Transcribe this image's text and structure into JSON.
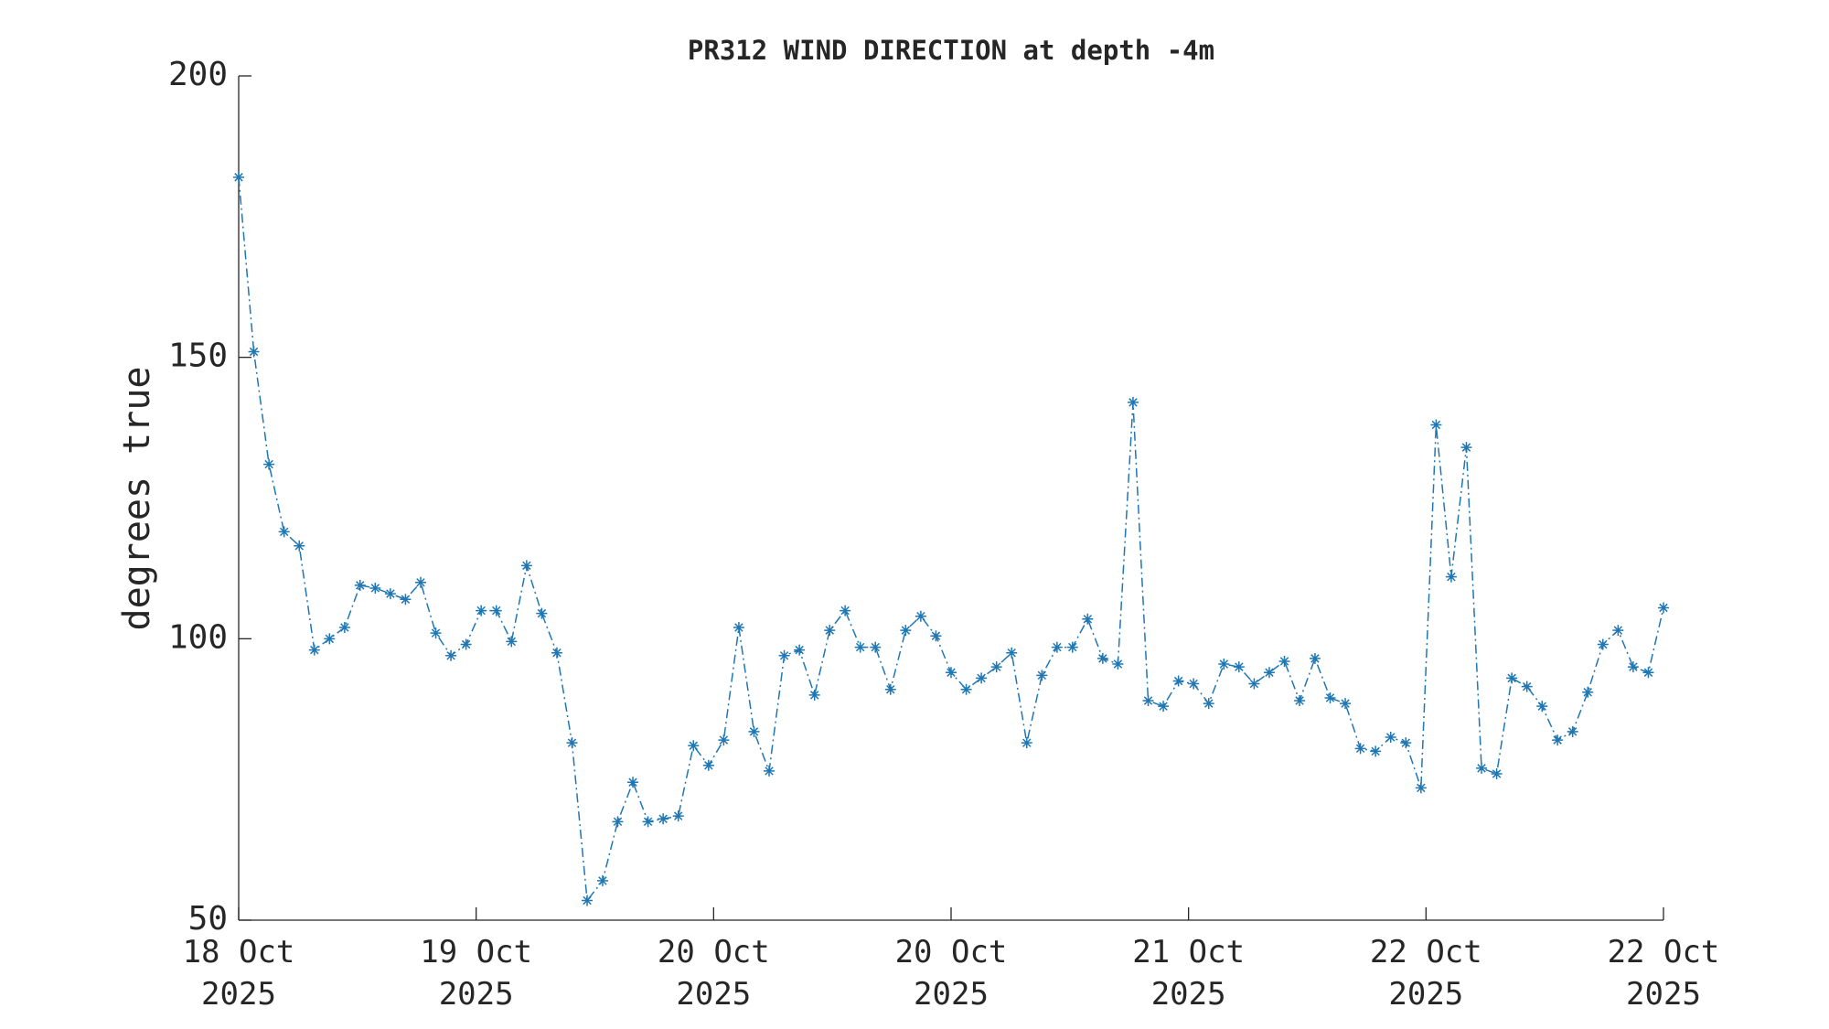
{
  "chart_data": {
    "type": "line",
    "title": "PR312 WIND DIRECTION at depth -4m",
    "y_label": "degrees true",
    "x": [
      0,
      0.051,
      0.102,
      0.153,
      0.204,
      0.255,
      0.306,
      0.357,
      0.409,
      0.46,
      0.511,
      0.562,
      0.613,
      0.664,
      0.715,
      0.766,
      0.817,
      0.868,
      0.919,
      0.97,
      1.021,
      1.072,
      1.123,
      1.174,
      1.226,
      1.277,
      1.328,
      1.379,
      1.43,
      1.481,
      1.532,
      1.583,
      1.634,
      1.685,
      1.736,
      1.787,
      1.838,
      1.889,
      1.94,
      1.991,
      2.043,
      2.094,
      2.145,
      2.196,
      2.247,
      2.298,
      2.349,
      2.4,
      2.451,
      2.502,
      2.553,
      2.604,
      2.655,
      2.706,
      2.757,
      2.809,
      2.86,
      2.911,
      2.962,
      3.013,
      3.064,
      3.115,
      3.166,
      3.217,
      3.268,
      3.319,
      3.37,
      3.421,
      3.472,
      3.523,
      3.574,
      3.626,
      3.677,
      3.728,
      3.779,
      3.83,
      3.881,
      3.932,
      3.983,
      4.034,
      4.085,
      4.136,
      4.187,
      4.238,
      4.289,
      4.34,
      4.391,
      4.443,
      4.494,
      4.545,
      4.596,
      4.647,
      4.698,
      4.749,
      4.8
    ],
    "series": [
      {
        "color": "#1f77b4",
        "values": [
          182,
          151,
          131,
          119,
          116.5,
          98,
          100,
          102,
          109.5,
          109,
          108,
          107,
          110,
          101,
          97,
          99,
          105,
          105,
          99.5,
          113,
          104.5,
          97.5,
          81.5,
          53.5,
          57,
          67.5,
          74.5,
          67.5,
          68,
          68.5,
          81,
          77.5,
          82,
          102,
          83.5,
          76.5,
          97,
          98,
          90,
          101.5,
          105,
          98.5,
          98.5,
          91,
          101.5,
          104,
          100.5,
          94,
          91,
          93,
          95,
          97.5,
          81.5,
          93.5,
          98.5,
          98.5,
          103.5,
          96.5,
          95.5,
          142,
          89,
          88,
          92.5,
          92,
          88.5,
          95.5,
          95,
          92,
          94,
          96,
          89,
          96.5,
          89.5,
          88.5,
          80.5,
          80,
          82.5,
          81.5,
          73.5,
          138,
          111,
          134,
          77,
          76,
          93,
          91.5,
          88,
          82,
          83.5,
          90.5,
          99,
          101.5,
          95,
          94,
          105.5
        ]
      }
    ],
    "xlim": [
      0,
      4.8
    ],
    "xticks": [
      {
        "value": 0,
        "label": "18 Oct\n2025"
      },
      {
        "value": 0.8,
        "label": "19 Oct\n2025"
      },
      {
        "value": 1.6,
        "label": "20 Oct\n2025"
      },
      {
        "value": 2.4,
        "label": "20 Oct\n2025"
      },
      {
        "value": 3.2,
        "label": "21 Oct\n2025"
      },
      {
        "value": 4.0,
        "label": "22 Oct\n2025"
      },
      {
        "value": 4.8,
        "label": "22 Oct\n2025"
      }
    ],
    "ylim": [
      50,
      200
    ],
    "yticks": [
      50,
      100,
      150,
      200
    ]
  }
}
